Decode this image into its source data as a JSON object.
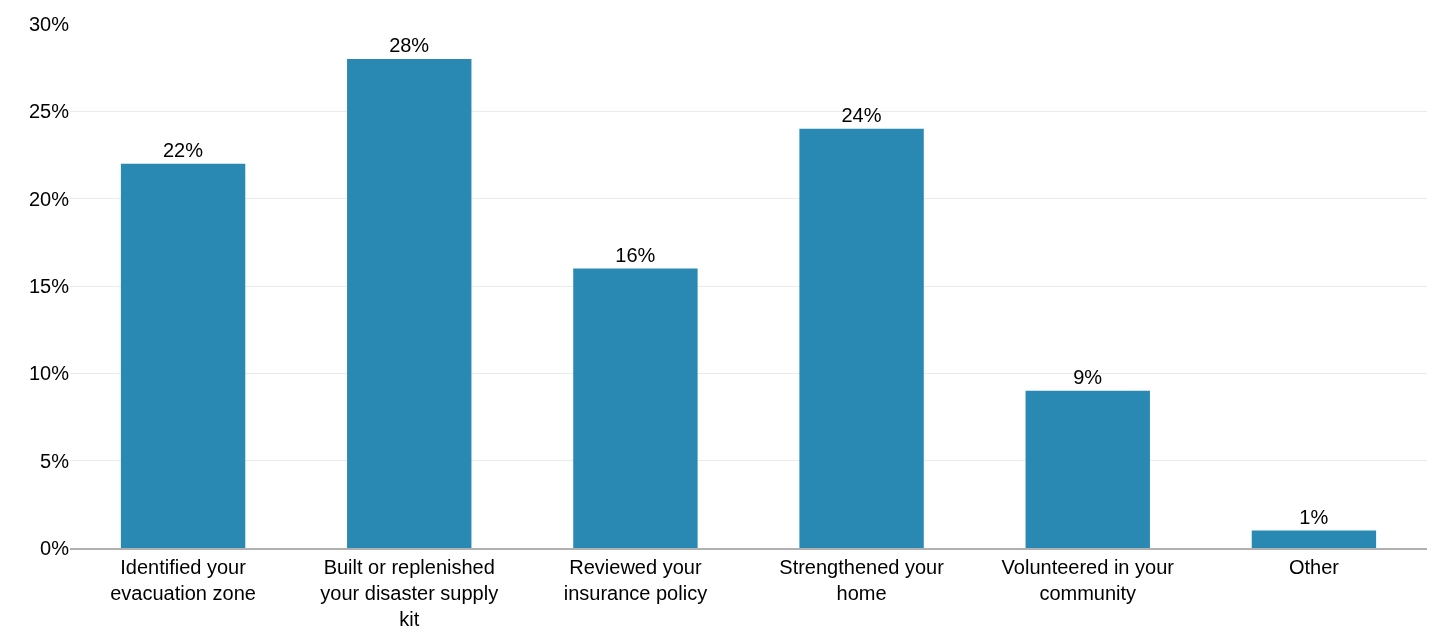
{
  "chart_data": {
    "type": "bar",
    "categories": [
      "Identified your evacuation zone",
      "Built or replenished your disaster supply kit",
      "Reviewed your insurance policy",
      "Strengthened your home",
      "Volunteered in your community",
      "Other"
    ],
    "values": [
      22,
      28,
      16,
      24,
      9,
      1
    ],
    "value_labels": [
      "22%",
      "28%",
      "16%",
      "24%",
      "9%",
      "1%"
    ],
    "color": "#2989b3",
    "ylim": [
      0,
      30
    ],
    "yticks": [
      {
        "value": 0,
        "label": "0%"
      },
      {
        "value": 5,
        "label": "5%"
      },
      {
        "value": 10,
        "label": "10%"
      },
      {
        "value": 15,
        "label": "15%"
      },
      {
        "value": 20,
        "label": "20%"
      },
      {
        "value": 25,
        "label": "25%"
      },
      {
        "value": 30,
        "label": "30%"
      }
    ],
    "grid": "y"
  }
}
